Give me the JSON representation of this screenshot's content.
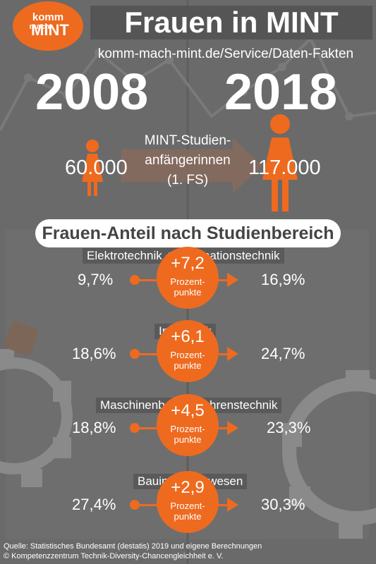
{
  "logo": {
    "line1": "komm",
    "line2": "mach",
    "line3": "MINT"
  },
  "title": "Frauen in MINT",
  "url": "komm-mach-mint.de/Service/Daten-Fakten",
  "years": {
    "left": "2008",
    "right": "2018"
  },
  "counts": {
    "left": "60.000",
    "right": "117.000"
  },
  "mint_label": [
    "MINT-Studien-",
    "anfängerinnen",
    "(1. FS)"
  ],
  "section_title": "Frauen-Anteil nach Studienbereich",
  "categories": [
    {
      "name": "Elektrotechnik + Informationstechnik",
      "left": "9,7%",
      "change": "+7,2",
      "unit1": "Prozent-",
      "unit2": "punkte",
      "right": "16,9%"
    },
    {
      "name": "Informatik",
      "left": "18,6%",
      "change": "+6,1",
      "unit1": "Prozent-",
      "unit2": "punkte",
      "right": "24,7%"
    },
    {
      "name": "Maschinenbau/Verfahrenstechnik",
      "left": "18,8%",
      "change": "+4,5",
      "unit1": "Prozent-",
      "unit2": "punkte",
      "right": "23,3%"
    },
    {
      "name": "Bauingenieurwesen",
      "left": "27,4%",
      "change": "+2,9",
      "unit1": "Prozent-",
      "unit2": "punkte",
      "right": "30,3%"
    }
  ],
  "source": {
    "line1": "Quelle: Statistisches Bundesamt (destatis) 2019 und eigene Berechnungen",
    "line2": "© Kompetenzzentrum Technik-Diversity-Chancengleichheit e. V."
  },
  "colors": {
    "accent": "#ee6a1f",
    "background": "#686868",
    "text": "#ffffff"
  }
}
